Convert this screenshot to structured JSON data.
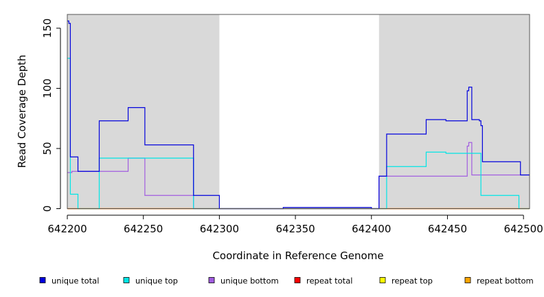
{
  "chart_data": {
    "type": "line",
    "xlabel": "Coordinate in Reference Genome",
    "ylabel": "Read Coverage Depth",
    "xlim": [
      642200,
      642504
    ],
    "ylim": [
      0,
      160
    ],
    "x_ticks": [
      642200,
      642250,
      642300,
      642350,
      642400,
      642450,
      642500
    ],
    "y_ticks": [
      0,
      50,
      100,
      150
    ],
    "shaded_regions": [
      {
        "from": 642200,
        "to": 642300,
        "color": "#d9d9d9"
      },
      {
        "from": 642405,
        "to": 642504,
        "color": "#d9d9d9"
      }
    ],
    "series": [
      {
        "name": "unique total",
        "color": "#0000dd",
        "points": [
          [
            642200,
            156
          ],
          [
            642201,
            156
          ],
          [
            642201,
            154
          ],
          [
            642202,
            154
          ],
          [
            642202,
            43
          ],
          [
            642207,
            43
          ],
          [
            642207,
            31
          ],
          [
            642221,
            31
          ],
          [
            642221,
            73
          ],
          [
            642240,
            73
          ],
          [
            642240,
            84
          ],
          [
            642251,
            84
          ],
          [
            642251,
            53
          ],
          [
            642283,
            53
          ],
          [
            642283,
            11
          ],
          [
            642300,
            11
          ],
          [
            642300,
            0
          ],
          [
            642342,
            0
          ],
          [
            642342,
            1
          ],
          [
            642400,
            1
          ],
          [
            642400,
            0
          ],
          [
            642405,
            0
          ],
          [
            642405,
            27
          ],
          [
            642410,
            27
          ],
          [
            642410,
            62
          ],
          [
            642436,
            62
          ],
          [
            642436,
            74
          ],
          [
            642449,
            74
          ],
          [
            642449,
            73
          ],
          [
            642463,
            73
          ],
          [
            642463,
            98
          ],
          [
            642464,
            98
          ],
          [
            642464,
            101
          ],
          [
            642466,
            101
          ],
          [
            642466,
            74
          ],
          [
            642471,
            74
          ],
          [
            642471,
            73
          ],
          [
            642472,
            73
          ],
          [
            642472,
            69
          ],
          [
            642473,
            69
          ],
          [
            642473,
            39
          ],
          [
            642498,
            39
          ],
          [
            642498,
            28
          ],
          [
            642504,
            28
          ]
        ]
      },
      {
        "name": "unique top",
        "color": "#00e5e5",
        "points": [
          [
            642200,
            125
          ],
          [
            642202,
            125
          ],
          [
            642202,
            12
          ],
          [
            642207,
            12
          ],
          [
            642207,
            0
          ],
          [
            642221,
            0
          ],
          [
            642221,
            42
          ],
          [
            642283,
            42
          ],
          [
            642283,
            0
          ],
          [
            642410,
            0
          ],
          [
            642410,
            35
          ],
          [
            642436,
            35
          ],
          [
            642436,
            47
          ],
          [
            642449,
            47
          ],
          [
            642449,
            46
          ],
          [
            642472,
            46
          ],
          [
            642472,
            11
          ],
          [
            642497,
            11
          ],
          [
            642497,
            0
          ],
          [
            642504,
            0
          ]
        ]
      },
      {
        "name": "unique bottom",
        "color": "#a15ce0",
        "points": [
          [
            642200,
            30
          ],
          [
            642203,
            30
          ],
          [
            642203,
            31
          ],
          [
            642240,
            31
          ],
          [
            642240,
            42
          ],
          [
            642251,
            42
          ],
          [
            642251,
            11
          ],
          [
            642283,
            11
          ],
          [
            642283,
            0
          ],
          [
            642405,
            0
          ],
          [
            642405,
            27
          ],
          [
            642463,
            27
          ],
          [
            642463,
            52
          ],
          [
            642464,
            52
          ],
          [
            642464,
            55
          ],
          [
            642466,
            55
          ],
          [
            642466,
            28
          ],
          [
            642504,
            28
          ]
        ]
      },
      {
        "name": "repeat total",
        "color": "#ff0000",
        "points": [
          [
            642200,
            0
          ],
          [
            642504,
            0
          ]
        ]
      },
      {
        "name": "repeat top",
        "color": "#ffff00",
        "points": [
          [
            642200,
            0
          ],
          [
            642504,
            0
          ]
        ]
      },
      {
        "name": "repeat bottom",
        "color": "#ffa500",
        "points": [
          [
            642200,
            0
          ],
          [
            642504,
            0
          ]
        ]
      }
    ],
    "legend_position": "bottom"
  }
}
